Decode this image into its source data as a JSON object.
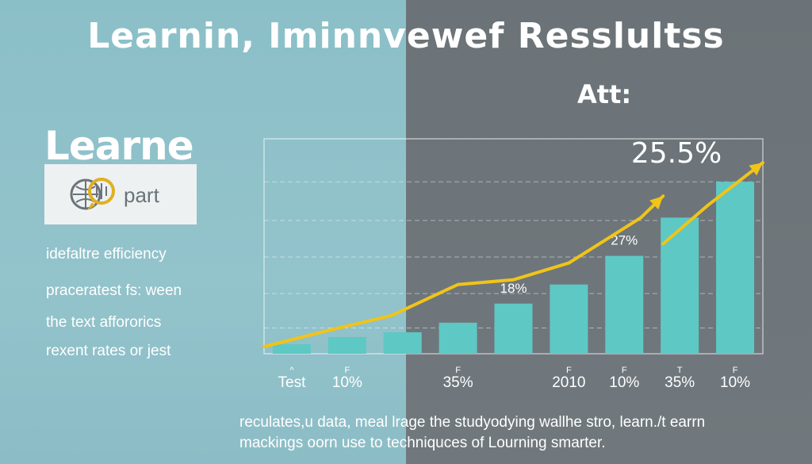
{
  "title": "Learnin, Iminnvewef Resslultss",
  "att_label": "Att:",
  "left_panel": {
    "heading": "Learne",
    "logo_text": "part",
    "lines": [
      "idefaltre efficiency",
      "praceratest fs: ween",
      "the text affororics",
      "rexent rates or jest"
    ]
  },
  "caption": [
    "reculates,u data, meal lrage the studyodying wallhe stro, learn./t earrn",
    "mackings oorn use to techniquces of Lourning smarter."
  ],
  "colors": {
    "left_bg": "#8fc1c9",
    "right_bg": "#6e767b",
    "bar": "#5ec8c4",
    "trend": "#f0c419",
    "text": "#ffffff"
  },
  "chart_data": {
    "type": "bar",
    "categories": [
      "Test",
      "10%",
      "",
      "35%",
      "",
      "2010",
      "10%",
      "35%",
      "10%"
    ],
    "values": [
      4,
      7,
      9,
      13,
      21,
      29,
      41,
      57,
      72
    ],
    "ylim": [
      0,
      90
    ],
    "grid": true,
    "data_labels": [
      {
        "index": 4,
        "text": "18%"
      },
      {
        "index": 6,
        "text": "27%"
      }
    ],
    "callout": "25.5%",
    "tick_marks": [
      "^",
      "F",
      "",
      "F",
      "",
      "F",
      "F",
      "T",
      "F"
    ],
    "trend_lines": [
      {
        "name": "",
        "points": [
          [
            0,
            3
          ],
          [
            1.2,
            10
          ],
          [
            2.3,
            16
          ],
          [
            3.5,
            29
          ],
          [
            4.5,
            31
          ],
          [
            5.5,
            38
          ],
          [
            6.8,
            57
          ],
          [
            7.2,
            66
          ]
        ]
      },
      {
        "name": "",
        "points": [
          [
            7.2,
            46
          ],
          [
            8.0,
            62
          ],
          [
            9.0,
            80
          ]
        ]
      }
    ]
  }
}
